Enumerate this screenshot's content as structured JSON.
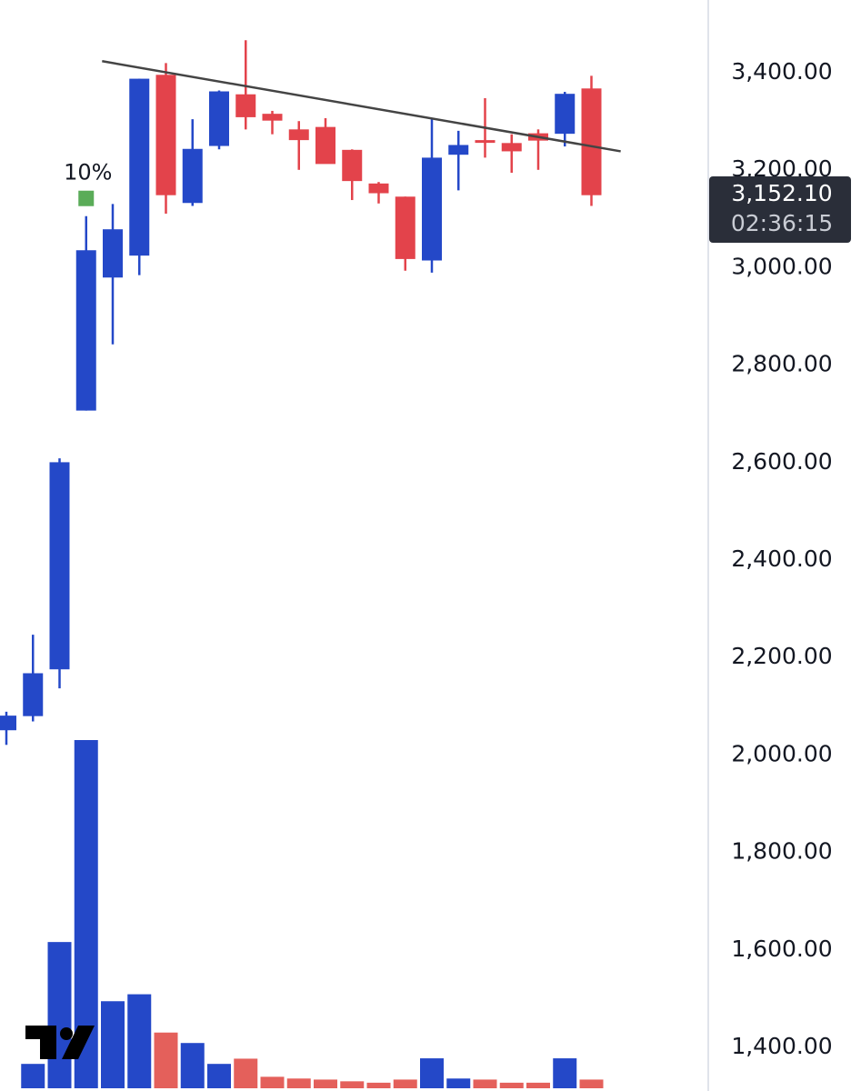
{
  "chart_data": {
    "type": "candlestick",
    "price_axis": {
      "ticks": [
        "3,400.00",
        "3,200.00",
        "3,000.00",
        "2,800.00",
        "2,600.00",
        "2,400.00",
        "2,200.00",
        "2,000.00",
        "1,800.00",
        "1,600.00",
        "1,400.00"
      ],
      "tick_values": [
        3400,
        3200,
        3000,
        2800,
        2600,
        2400,
        2200,
        2000,
        1800,
        1600,
        1400
      ],
      "range": [
        1358,
        3450
      ]
    },
    "current_price": {
      "value": 3152.1,
      "label": "3,152.10",
      "countdown": "02:36:15"
    },
    "marker": {
      "label": "10%",
      "color": "#5aac58",
      "candle_index": 3
    },
    "candles": [
      {
        "open": 2047,
        "high": 2085,
        "low": 2017,
        "close": 2077,
        "direction": "up"
      },
      {
        "open": 2076,
        "high": 2243,
        "low": 2065,
        "close": 2164,
        "direction": "up"
      },
      {
        "open": 2172,
        "high": 2605,
        "low": 2133,
        "close": 2597,
        "direction": "up"
      },
      {
        "open": 2703,
        "high": 3102,
        "low": 2703,
        "close": 3032,
        "direction": "up"
      },
      {
        "open": 2976,
        "high": 3127,
        "low": 2839,
        "close": 3075,
        "direction": "up"
      },
      {
        "open": 3021,
        "high": 3384,
        "low": 2981,
        "close": 3384,
        "direction": "up"
      },
      {
        "open": 3392,
        "high": 3416,
        "low": 3107,
        "close": 3145,
        "direction": "down"
      },
      {
        "open": 3129,
        "high": 3301,
        "low": 3123,
        "close": 3240,
        "direction": "up"
      },
      {
        "open": 3246,
        "high": 3360,
        "low": 3239,
        "close": 3358,
        "direction": "up"
      },
      {
        "open": 3352,
        "high": 3463,
        "low": 3280,
        "close": 3305,
        "direction": "down"
      },
      {
        "open": 3312,
        "high": 3318,
        "low": 3270,
        "close": 3298,
        "direction": "down"
      },
      {
        "open": 3280,
        "high": 3297,
        "low": 3197,
        "close": 3258,
        "direction": "down"
      },
      {
        "open": 3285,
        "high": 3303,
        "low": 3210,
        "close": 3209,
        "direction": "down"
      },
      {
        "open": 3238,
        "high": 3239,
        "low": 3135,
        "close": 3174,
        "direction": "down"
      },
      {
        "open": 3169,
        "high": 3172,
        "low": 3128,
        "close": 3149,
        "direction": "down"
      },
      {
        "open": 3142,
        "high": 3142,
        "low": 2990,
        "close": 3014,
        "direction": "down"
      },
      {
        "open": 3011,
        "high": 3302,
        "low": 2986,
        "close": 3222,
        "direction": "up"
      },
      {
        "open": 3228,
        "high": 3277,
        "low": 3155,
        "close": 3248,
        "direction": "up"
      },
      {
        "open": 3258,
        "high": 3344,
        "low": 3222,
        "close": 3254,
        "direction": "down"
      },
      {
        "open": 3252,
        "high": 3270,
        "low": 3191,
        "close": 3235,
        "direction": "down"
      },
      {
        "open": 3272,
        "high": 3280,
        "low": 3197,
        "close": 3257,
        "direction": "down"
      },
      {
        "open": 3271,
        "high": 3357,
        "low": 3245,
        "close": 3353,
        "direction": "up"
      },
      {
        "open": 3364,
        "high": 3390,
        "low": 3123,
        "close": 3145,
        "direction": "down"
      }
    ],
    "volume": {
      "scale_max": 100,
      "bars": [
        {
          "value": 0,
          "direction": "up"
        },
        {
          "value": 7,
          "direction": "up"
        },
        {
          "value": 42,
          "direction": "up"
        },
        {
          "value": 100,
          "direction": "up"
        },
        {
          "value": 25,
          "direction": "up"
        },
        {
          "value": 27,
          "direction": "up"
        },
        {
          "value": 16,
          "direction": "down"
        },
        {
          "value": 13,
          "direction": "up"
        },
        {
          "value": 7,
          "direction": "up"
        },
        {
          "value": 8.5,
          "direction": "down"
        },
        {
          "value": 3.3,
          "direction": "down"
        },
        {
          "value": 2.8,
          "direction": "down"
        },
        {
          "value": 2.5,
          "direction": "down"
        },
        {
          "value": 2,
          "direction": "down"
        },
        {
          "value": 1.6,
          "direction": "down"
        },
        {
          "value": 2.5,
          "direction": "down"
        },
        {
          "value": 8.6,
          "direction": "up"
        },
        {
          "value": 2.8,
          "direction": "up"
        },
        {
          "value": 2.5,
          "direction": "down"
        },
        {
          "value": 1.6,
          "direction": "down"
        },
        {
          "value": 1.6,
          "direction": "down"
        },
        {
          "value": 8.6,
          "direction": "up"
        },
        {
          "value": 2.5,
          "direction": "down"
        }
      ]
    },
    "trendline": {
      "start": {
        "candle": 3.6,
        "price": 3420
      },
      "end": {
        "candle": 23.1,
        "price": 3235
      }
    },
    "grid": false,
    "colors": {
      "up": "#2448c8",
      "down": "#e3434b",
      "volume_up": "#2448c8",
      "volume_down": "#e4605b",
      "trendline": "#444444",
      "axis_text": "#131722",
      "axis_line": "#e0e3eb",
      "price_tag_bg": "#2a2e39"
    },
    "logo": {
      "name": "tradingview-logo-icon"
    }
  }
}
